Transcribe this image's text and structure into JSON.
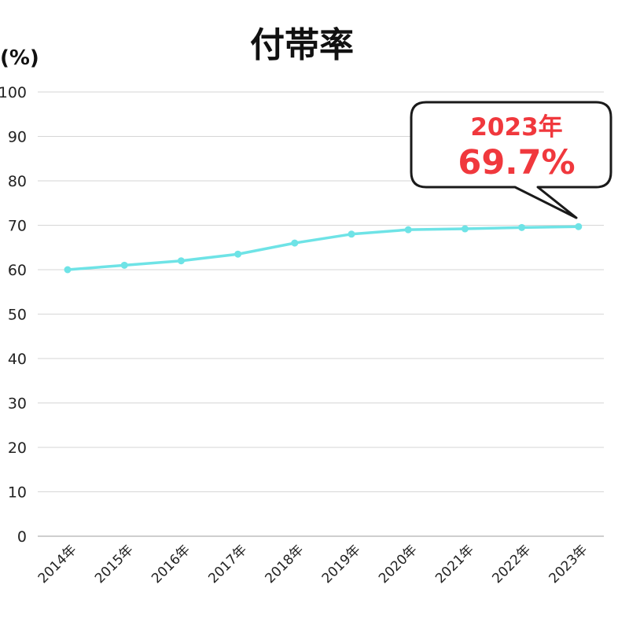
{
  "chart_data": {
    "type": "line",
    "title": "付帯率",
    "ylabel": "(%)",
    "xlabel": "",
    "categories": [
      "2014年",
      "2015年",
      "2016年",
      "2017年",
      "2018年",
      "2019年",
      "2020年",
      "2021年",
      "2022年",
      "2023年"
    ],
    "series": [
      {
        "values": [
          60.0,
          61.0,
          62.0,
          63.5,
          66.0,
          68.0,
          69.0,
          69.2,
          69.5,
          69.7
        ]
      }
    ],
    "ylim": [
      0,
      100
    ],
    "yticks": [
      0,
      10,
      20,
      30,
      40,
      50,
      60,
      70,
      80,
      90,
      100
    ],
    "grid": true,
    "line_color": "#6ee3e6",
    "annotation": {
      "year": "2023年",
      "value_text": "69.7%",
      "color": "#f0383d"
    }
  }
}
